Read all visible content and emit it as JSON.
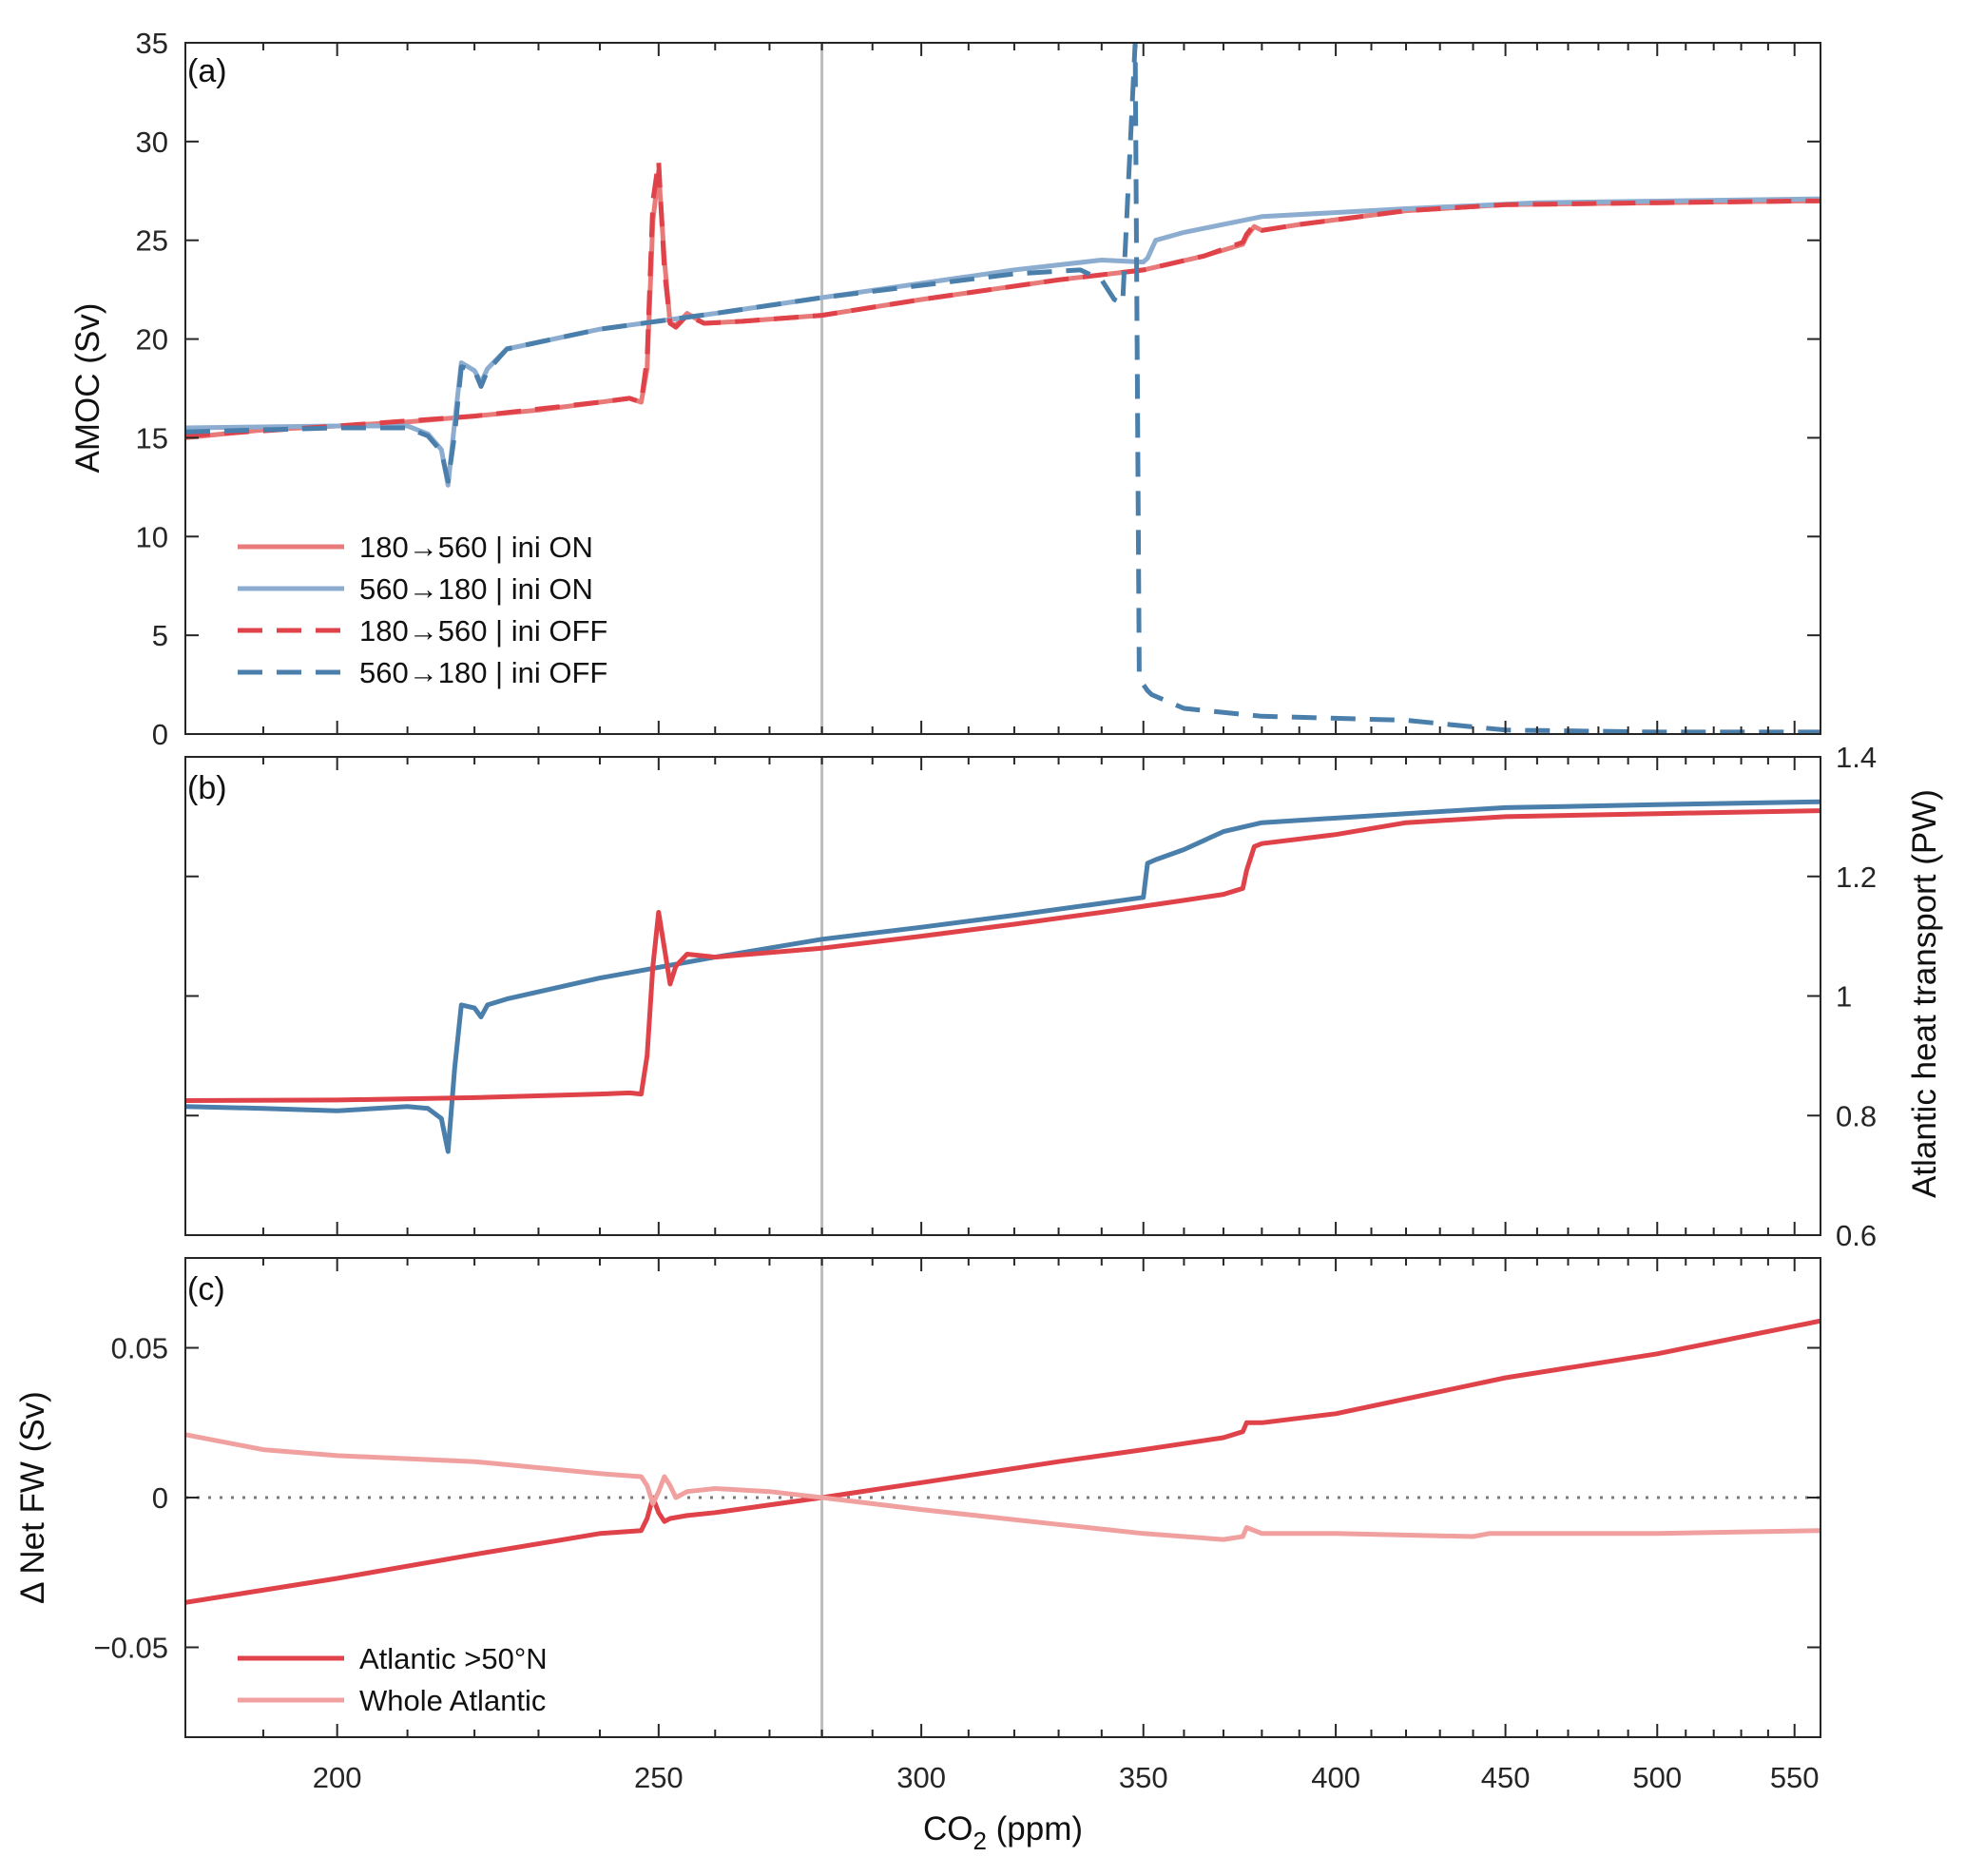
{
  "figure": {
    "x_axis": {
      "title": "CO",
      "title_sub": "2",
      "title_unit": " (ppm)"
    }
  },
  "chart_data": [
    {
      "panel": "a",
      "panel_label": "(a)",
      "type": "line",
      "xscale": "log",
      "xlim": [
        180,
        560
      ],
      "xticks": [
        200,
        250,
        300,
        350,
        400,
        450,
        500,
        550
      ],
      "ylabel": "AMOC (Sv)",
      "ylim": [
        0,
        35
      ],
      "yticks": [
        0,
        5,
        10,
        15,
        20,
        25,
        30,
        35
      ],
      "reference_x": 280,
      "legend_position": "lower-left",
      "series": [
        {
          "name": "180→560 | ini ON",
          "color": "#e87a7a",
          "dash": "solid",
          "legend": true,
          "x": [
            180,
            190,
            200,
            210,
            220,
            230,
            240,
            245,
            247,
            248,
            249,
            250,
            251,
            252,
            253,
            255,
            258,
            265,
            280,
            300,
            330,
            350,
            365,
            375,
            376,
            378,
            380,
            390,
            420,
            450,
            500,
            560
          ],
          "y": [
            15.0,
            15.4,
            15.6,
            15.8,
            16.1,
            16.4,
            16.8,
            17.0,
            16.8,
            18.5,
            26,
            28.5,
            24,
            20.8,
            20.7,
            21.3,
            20.8,
            20.9,
            21.2,
            22.0,
            23.0,
            23.5,
            24.2,
            24.8,
            25.2,
            25.7,
            25.5,
            25.8,
            26.5,
            26.8,
            26.9,
            27.0
          ]
        },
        {
          "name": "560→180 | ini ON",
          "color": "#8cadd0",
          "dash": "solid",
          "legend": true,
          "x": [
            180,
            200,
            210,
            213,
            215,
            216,
            217,
            218,
            220,
            221,
            222,
            225,
            240,
            260,
            280,
            320,
            340,
            350,
            351,
            353,
            360,
            380,
            420,
            460,
            560
          ],
          "y": [
            15.5,
            15.6,
            15.6,
            15.2,
            14.4,
            12.6,
            15.8,
            18.8,
            18.4,
            17.8,
            18.5,
            19.5,
            20.5,
            21.3,
            22.1,
            23.5,
            24.0,
            23.9,
            24.1,
            25.0,
            25.4,
            26.2,
            26.6,
            26.9,
            27.1
          ]
        },
        {
          "name": "180→560 | ini OFF",
          "color": "#e0424a",
          "dash": "dashed",
          "legend": true,
          "x": [
            180,
            200,
            220,
            240,
            245,
            247,
            248,
            249,
            250,
            251,
            252,
            253,
            255,
            258,
            265,
            280,
            300,
            330,
            350,
            365,
            375,
            376,
            378,
            380,
            390,
            420,
            450,
            500,
            560
          ],
          "y": [
            15.1,
            15.6,
            16.1,
            16.8,
            17.0,
            16.8,
            19.0,
            27.0,
            29.0,
            23.5,
            20.8,
            20.6,
            21.2,
            20.8,
            20.9,
            21.2,
            22.0,
            23.0,
            23.5,
            24.2,
            24.9,
            25.3,
            25.8,
            25.5,
            25.8,
            26.5,
            26.8,
            26.9,
            27.0
          ]
        },
        {
          "name": "560→180 | ini OFF",
          "color": "#4a7eab",
          "dash": "dashed",
          "legend": true,
          "x": [
            180,
            200,
            210,
            213,
            215,
            216,
            217,
            218,
            220,
            221,
            222,
            225,
            240,
            260,
            280,
            320,
            335,
            340,
            343,
            345,
            348,
            349,
            350,
            351,
            352,
            360,
            380,
            420,
            450,
            500,
            560
          ],
          "y": [
            15.3,
            15.5,
            15.5,
            15.1,
            14.3,
            12.8,
            15.2,
            18.6,
            18.4,
            17.6,
            18.4,
            19.5,
            20.5,
            21.3,
            22.1,
            23.3,
            23.5,
            23.0,
            22.0,
            21.8,
            35,
            3,
            2.5,
            2.2,
            2.0,
            1.3,
            0.9,
            0.7,
            0.2,
            0.1,
            0.1
          ]
        }
      ]
    },
    {
      "panel": "b",
      "panel_label": "(b)",
      "type": "line",
      "xscale": "log",
      "xlim": [
        180,
        560
      ],
      "ylabel": "Atlantic heat transport (PW)",
      "yaxis_side": "right",
      "ylim": [
        0.6,
        1.4
      ],
      "yticks": [
        0.6,
        0.8,
        1,
        1.2,
        1.4
      ],
      "ytick_labels": [
        "0.6",
        "0.8",
        "1",
        "1.2",
        "1.4"
      ],
      "reference_x": 280,
      "series": [
        {
          "color": "#4a7eab",
          "dash": "solid",
          "x": [
            180,
            190,
            200,
            210,
            213,
            215,
            216,
            217,
            218,
            220,
            221,
            222,
            225,
            240,
            260,
            280,
            300,
            320,
            340,
            350,
            351,
            353,
            360,
            370,
            380,
            420,
            450,
            500,
            560
          ],
          "y": [
            0.815,
            0.812,
            0.808,
            0.815,
            0.812,
            0.795,
            0.74,
            0.88,
            0.985,
            0.98,
            0.965,
            0.985,
            0.995,
            1.03,
            1.065,
            1.095,
            1.115,
            1.135,
            1.155,
            1.165,
            1.222,
            1.228,
            1.245,
            1.275,
            1.29,
            1.305,
            1.315,
            1.32,
            1.325
          ]
        },
        {
          "color": "#e0424a",
          "dash": "solid",
          "x": [
            180,
            200,
            220,
            240,
            245,
            247,
            248,
            249,
            250,
            251,
            252,
            253,
            255,
            260,
            280,
            300,
            320,
            340,
            360,
            370,
            375,
            376,
            378,
            380,
            400,
            420,
            450,
            500,
            560
          ],
          "y": [
            0.825,
            0.826,
            0.83,
            0.836,
            0.838,
            0.836,
            0.9,
            1.05,
            1.14,
            1.08,
            1.02,
            1.05,
            1.07,
            1.065,
            1.08,
            1.1,
            1.12,
            1.14,
            1.16,
            1.17,
            1.18,
            1.21,
            1.25,
            1.255,
            1.27,
            1.29,
            1.3,
            1.305,
            1.31
          ]
        }
      ]
    },
    {
      "panel": "c",
      "panel_label": "(c)",
      "type": "line",
      "xscale": "log",
      "xlim": [
        180,
        560
      ],
      "ylabel": "Δ Net FW (Sv)",
      "ylim": [
        -0.08,
        0.08
      ],
      "yticks": [
        -0.05,
        0,
        0.05
      ],
      "ytick_labels": [
        "−0.05",
        "0",
        "0.05"
      ],
      "reference_x": 280,
      "zero_line": true,
      "legend_position": "lower-left",
      "series": [
        {
          "name": "Atlantic >50°N",
          "color": "#e0424a",
          "dash": "solid",
          "legend": true,
          "x": [
            180,
            200,
            220,
            240,
            247,
            248,
            249,
            250,
            251,
            252,
            255,
            260,
            280,
            300,
            330,
            350,
            370,
            375,
            376,
            380,
            400,
            450,
            500,
            560
          ],
          "y": [
            -0.035,
            -0.027,
            -0.019,
            -0.012,
            -0.011,
            -0.007,
            0.0,
            -0.005,
            -0.008,
            -0.007,
            -0.006,
            -0.005,
            0.0,
            0.005,
            0.012,
            0.016,
            0.02,
            0.022,
            0.025,
            0.025,
            0.028,
            0.04,
            0.048,
            0.059
          ]
        },
        {
          "name": "Whole Atlantic",
          "color": "#f1a0a0",
          "dash": "solid",
          "legend": true,
          "x": [
            180,
            190,
            200,
            220,
            240,
            247,
            248,
            249,
            250,
            251,
            252,
            253,
            255,
            260,
            270,
            280,
            300,
            330,
            350,
            370,
            375,
            376,
            380,
            400,
            440,
            445,
            500,
            560
          ],
          "y": [
            0.021,
            0.016,
            0.014,
            0.012,
            0.008,
            0.007,
            0.004,
            -0.002,
            0.002,
            0.007,
            0.004,
            0.0,
            0.002,
            0.003,
            0.002,
            0.0,
            -0.004,
            -0.009,
            -0.012,
            -0.014,
            -0.013,
            -0.01,
            -0.012,
            -0.012,
            -0.013,
            -0.012,
            -0.012,
            -0.011
          ]
        }
      ]
    }
  ]
}
